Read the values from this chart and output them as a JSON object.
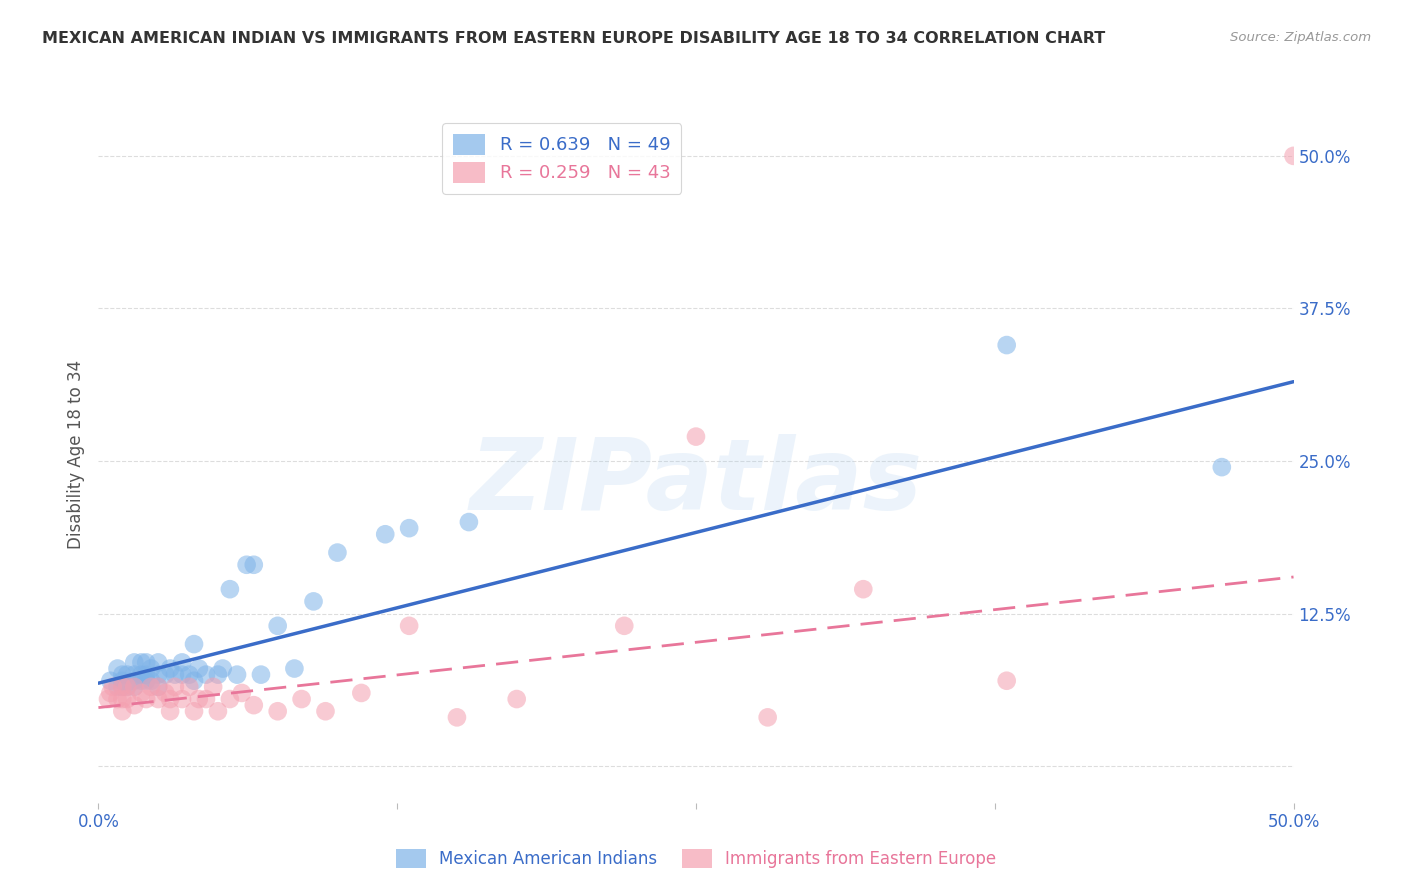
{
  "title": "MEXICAN AMERICAN INDIAN VS IMMIGRANTS FROM EASTERN EUROPE DISABILITY AGE 18 TO 34 CORRELATION CHART",
  "source": "Source: ZipAtlas.com",
  "ylabel": "Disability Age 18 to 34",
  "x_min": 0.0,
  "x_max": 0.5,
  "y_min": -0.03,
  "y_max": 0.54,
  "x_ticks": [
    0.0,
    0.125,
    0.25,
    0.375,
    0.5
  ],
  "x_tick_labels": [
    "0.0%",
    "",
    "",
    "",
    "50.0%"
  ],
  "y_ticks_right": [
    0.5,
    0.375,
    0.25,
    0.125,
    0.0
  ],
  "y_tick_labels_right": [
    "50.0%",
    "37.5%",
    "25.0%",
    "12.5%",
    ""
  ],
  "blue_R": 0.639,
  "blue_N": 49,
  "pink_R": 0.259,
  "pink_N": 43,
  "blue_color": "#7EB3E8",
  "pink_color": "#F4A0B0",
  "blue_line_color": "#3A6CC8",
  "pink_line_color": "#E8769A",
  "blue_scatter_x": [
    0.005,
    0.008,
    0.008,
    0.01,
    0.01,
    0.01,
    0.012,
    0.012,
    0.015,
    0.015,
    0.015,
    0.015,
    0.018,
    0.018,
    0.018,
    0.02,
    0.02,
    0.02,
    0.022,
    0.022,
    0.025,
    0.025,
    0.025,
    0.028,
    0.03,
    0.032,
    0.035,
    0.035,
    0.038,
    0.04,
    0.04,
    0.042,
    0.045,
    0.05,
    0.052,
    0.055,
    0.058,
    0.062,
    0.065,
    0.068,
    0.075,
    0.082,
    0.09,
    0.1,
    0.12,
    0.13,
    0.155,
    0.38,
    0.47
  ],
  "blue_scatter_y": [
    0.07,
    0.065,
    0.08,
    0.065,
    0.07,
    0.075,
    0.065,
    0.075,
    0.065,
    0.07,
    0.075,
    0.085,
    0.07,
    0.075,
    0.085,
    0.07,
    0.075,
    0.085,
    0.07,
    0.08,
    0.065,
    0.075,
    0.085,
    0.075,
    0.08,
    0.075,
    0.075,
    0.085,
    0.075,
    0.07,
    0.1,
    0.08,
    0.075,
    0.075,
    0.08,
    0.145,
    0.075,
    0.165,
    0.165,
    0.075,
    0.115,
    0.08,
    0.135,
    0.175,
    0.19,
    0.195,
    0.2,
    0.345,
    0.245
  ],
  "pink_scatter_x": [
    0.004,
    0.005,
    0.006,
    0.008,
    0.01,
    0.01,
    0.01,
    0.012,
    0.012,
    0.015,
    0.015,
    0.018,
    0.02,
    0.022,
    0.025,
    0.025,
    0.028,
    0.03,
    0.03,
    0.032,
    0.035,
    0.038,
    0.04,
    0.042,
    0.045,
    0.048,
    0.05,
    0.055,
    0.06,
    0.065,
    0.075,
    0.085,
    0.095,
    0.11,
    0.13,
    0.15,
    0.175,
    0.22,
    0.25,
    0.28,
    0.32,
    0.38,
    0.5
  ],
  "pink_scatter_y": [
    0.055,
    0.06,
    0.065,
    0.055,
    0.045,
    0.055,
    0.065,
    0.055,
    0.065,
    0.05,
    0.065,
    0.06,
    0.055,
    0.065,
    0.055,
    0.065,
    0.06,
    0.045,
    0.055,
    0.065,
    0.055,
    0.065,
    0.045,
    0.055,
    0.055,
    0.065,
    0.045,
    0.055,
    0.06,
    0.05,
    0.045,
    0.055,
    0.045,
    0.06,
    0.115,
    0.04,
    0.055,
    0.115,
    0.27,
    0.04,
    0.145,
    0.07,
    0.5
  ],
  "blue_line_start_x": 0.0,
  "blue_line_start_y": 0.068,
  "blue_line_end_x": 0.5,
  "blue_line_end_y": 0.315,
  "pink_line_start_x": 0.0,
  "pink_line_start_y": 0.048,
  "pink_line_end_x": 0.5,
  "pink_line_end_y": 0.155,
  "watermark_text": "ZIPatlas",
  "background_color": "#FFFFFF",
  "grid_color": "#DDDDDD",
  "title_color": "#333333",
  "source_color": "#999999",
  "axis_label_color": "#3A6CC8",
  "ylabel_color": "#555555"
}
